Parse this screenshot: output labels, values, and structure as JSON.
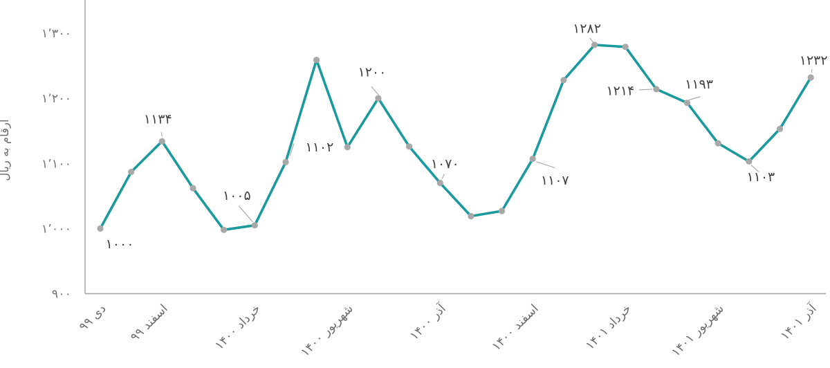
{
  "chart_data": {
    "type": "line",
    "title": "",
    "xlabel": "",
    "ylabel": "ارقام به ریال",
    "ylim": [
      900,
      1350
    ],
    "grid": false,
    "legend_position": "none",
    "y_ticks": [
      {
        "value": 900,
        "label": "۹۰۰"
      },
      {
        "value": 1000,
        "label": "۱٬۰۰۰"
      },
      {
        "value": 1100,
        "label": "۱٬۱۰۰"
      },
      {
        "value": 1200,
        "label": "۱٬۲۰۰"
      },
      {
        "value": 1300,
        "label": "۱٬۳۰۰"
      }
    ],
    "point_count": 24,
    "x_ticks": [
      {
        "index": 0,
        "label": "دی ۹۹"
      },
      {
        "index": 2,
        "label": "اسفند ۹۹"
      },
      {
        "index": 5,
        "label": "خرداد ۱۴۰۰"
      },
      {
        "index": 8,
        "label": "شهریور ۱۴۰۰"
      },
      {
        "index": 11,
        "label": "آذر ۱۴۰۰"
      },
      {
        "index": 14,
        "label": "اسفند ۱۴۰۰"
      },
      {
        "index": 17,
        "label": "خرداد ۱۴۰۱"
      },
      {
        "index": 20,
        "label": "شهریور ۱۴۰۱"
      },
      {
        "index": 23,
        "label": "آذر ۱۴۰۱"
      }
    ],
    "series": [
      {
        "name": "",
        "values": [
          1000,
          1087,
          1134,
          1062,
          998,
          1005,
          1102,
          1259,
          1125,
          1200,
          1126,
          1070,
          1019,
          1027,
          1107,
          1228,
          1282,
          1279,
          1214,
          1193,
          1131,
          1103,
          1153,
          1232
        ]
      }
    ],
    "data_labels": [
      {
        "index": 0,
        "value": 1000,
        "text": "۱۰۰۰"
      },
      {
        "index": 2,
        "value": 1134,
        "text": "۱۱۳۴"
      },
      {
        "index": 5,
        "value": 1005,
        "text": "۱۰۰۵"
      },
      {
        "index": 6,
        "value": 1102,
        "text": "۱۱۰۲"
      },
      {
        "index": 9,
        "value": 1200,
        "text": "۱۲۰۰"
      },
      {
        "index": 11,
        "value": 1070,
        "text": "۱۰۷۰"
      },
      {
        "index": 14,
        "value": 1107,
        "text": "۱۱۰۷"
      },
      {
        "index": 16,
        "value": 1282,
        "text": "۱۲۸۲"
      },
      {
        "index": 18,
        "value": 1214,
        "text": "۱۲۱۴"
      },
      {
        "index": 19,
        "value": 1193,
        "text": "۱۱۹۳"
      },
      {
        "index": 21,
        "value": 1103,
        "text": "۱۱۰۳"
      },
      {
        "index": 23,
        "value": 1232,
        "text": "۱۲۳۲"
      }
    ],
    "colors": {
      "line": "#1A9A9C",
      "marker": "#A8A8A8",
      "data_label_text": "#404040",
      "tick_text": "#757575",
      "axis_line": "#A0A0A0",
      "leader_line": "#A6A6A6"
    }
  }
}
